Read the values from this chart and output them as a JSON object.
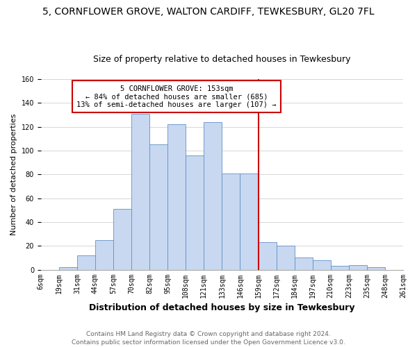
{
  "title": "5, CORNFLOWER GROVE, WALTON CARDIFF, TEWKESBURY, GL20 7FL",
  "subtitle": "Size of property relative to detached houses in Tewkesbury",
  "xlabel": "Distribution of detached houses by size in Tewkesbury",
  "ylabel": "Number of detached properties",
  "bar_labels": [
    "6sqm",
    "19sqm",
    "31sqm",
    "44sqm",
    "57sqm",
    "70sqm",
    "82sqm",
    "95sqm",
    "108sqm",
    "121sqm",
    "133sqm",
    "146sqm",
    "159sqm",
    "172sqm",
    "184sqm",
    "197sqm",
    "210sqm",
    "223sqm",
    "235sqm",
    "248sqm",
    "261sqm"
  ],
  "bar_values": [
    0,
    2,
    12,
    25,
    51,
    131,
    105,
    122,
    96,
    124,
    81,
    81,
    23,
    20,
    10,
    8,
    3,
    4,
    2,
    0
  ],
  "bar_color": "#c8d8f0",
  "bar_edge_color": "#6090c8",
  "marker_line_color": "#cc0000",
  "annotation_text": "5 CORNFLOWER GROVE: 153sqm\n← 84% of detached houses are smaller (685)\n13% of semi-detached houses are larger (107) →",
  "annotation_box_color": "#ffffff",
  "annotation_box_edge": "#cc0000",
  "footer_text": "Contains HM Land Registry data © Crown copyright and database right 2024.\nContains public sector information licensed under the Open Government Licence v3.0.",
  "ylim": [
    0,
    160
  ],
  "title_fontsize": 10,
  "subtitle_fontsize": 9,
  "xlabel_fontsize": 9,
  "ylabel_fontsize": 8,
  "tick_fontsize": 7,
  "footer_fontsize": 6.5,
  "annot_fontsize": 7.5
}
